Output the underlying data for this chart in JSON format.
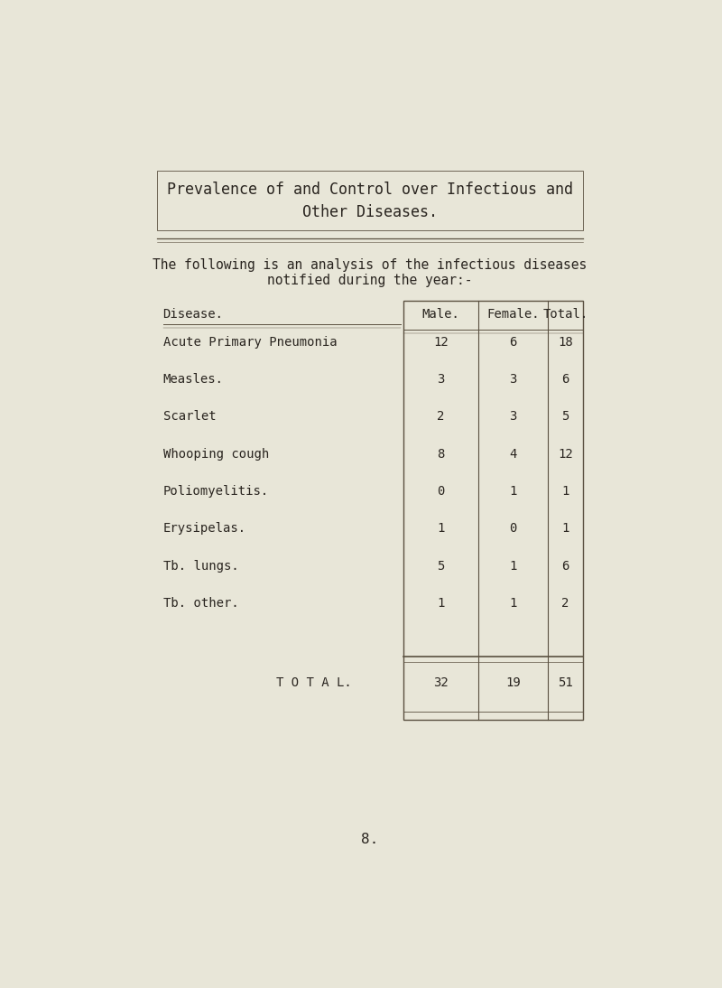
{
  "title_line1": "Prevalence of and Control over Infectious and",
  "title_line2": "Other Diseases.",
  "subtitle_line1": "The following is an analysis of the infectious diseases",
  "subtitle_line2": "notified during the year:-",
  "col_headers": [
    "Male.",
    "Female.",
    "Total."
  ],
  "row_label_header": "Disease.",
  "rows": [
    {
      "disease": "Acute Primary Pneumonia",
      "male": "12",
      "female": "6",
      "total": "18"
    },
    {
      "disease": "Measles.",
      "male": "3",
      "female": "3",
      "total": "6"
    },
    {
      "disease": "Scarlet",
      "male": "2",
      "female": "3",
      "total": "5"
    },
    {
      "disease": "Whooping cough",
      "male": "8",
      "female": "4",
      "total": "12"
    },
    {
      "disease": "Poliomyelitis.",
      "male": "0",
      "female": "1",
      "total": "1"
    },
    {
      "disease": "Erysipelas.",
      "male": "1",
      "female": "0",
      "total": "1"
    },
    {
      "disease": "Tb. lungs.",
      "male": "5",
      "female": "1",
      "total": "6"
    },
    {
      "disease": "Tb. other.",
      "male": "1",
      "female": "1",
      "total": "2"
    }
  ],
  "total_label": "T O T A L.",
  "total_male": "32",
  "total_female": "19",
  "total_total": "51",
  "page_number": "8.",
  "bg_color": "#e8e6d8",
  "text_color": "#2a2520",
  "table_border_color": "#5a5040",
  "font_size_title": 12,
  "font_size_body": 10.5,
  "font_size_table": 10
}
